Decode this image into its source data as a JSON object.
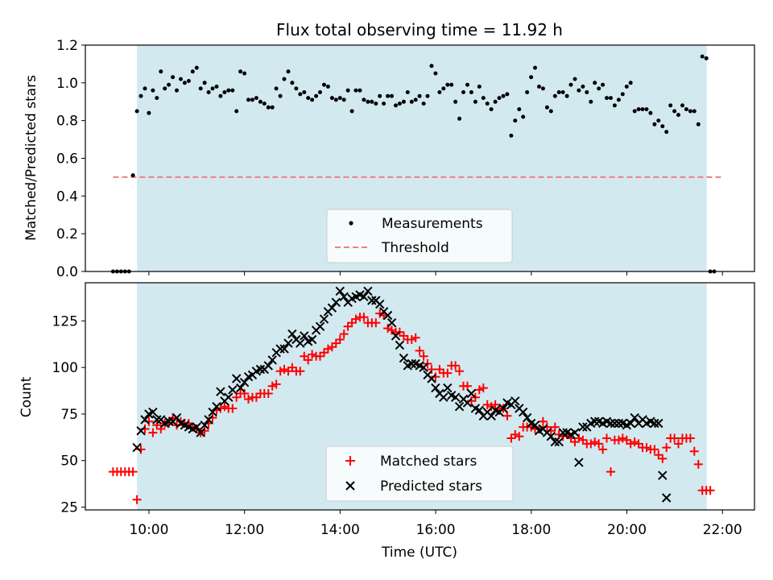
{
  "figure": {
    "title": "Flux total observing time = 11.92 h",
    "xlabel": "Time (UTC)",
    "x_ticks": [
      "10:00",
      "12:00",
      "14:00",
      "16:00",
      "18:00",
      "20:00",
      "22:00"
    ],
    "x_tick_hours": [
      10,
      12,
      14,
      16,
      18,
      20,
      22
    ],
    "xlim_hours": [
      8.67,
      22.67
    ],
    "observing_span_hours": [
      9.75,
      21.67
    ],
    "span_color": "#d3e9f0"
  },
  "chart_data": [
    {
      "type": "scatter",
      "ylabel": "Matched/Predicted stars",
      "ylim": [
        0,
        1.2
      ],
      "y_ticks": [
        "0.0",
        "0.2",
        "0.4",
        "0.6",
        "0.8",
        "1.0",
        "1.2"
      ],
      "y_tick_values": [
        0,
        0.2,
        0.4,
        0.6,
        0.8,
        1.0,
        1.2
      ],
      "legend_position": "bottom-center",
      "threshold": {
        "name": "Threshold",
        "value": 0.5,
        "x_range_hours": [
          9.25,
          22.0
        ],
        "color": "#f08080"
      },
      "series": [
        {
          "name": "Measurements",
          "marker": "dot",
          "color": "#000000",
          "x_start_hours": 9.25,
          "x_step_hours": 0.0833,
          "y": [
            0,
            0,
            0,
            0,
            0,
            0.51,
            0.85,
            0.93,
            0.97,
            0.84,
            0.96,
            0.92,
            1.06,
            0.97,
            0.99,
            1.03,
            0.96,
            1.02,
            1.0,
            1.01,
            1.06,
            1.08,
            0.97,
            1.0,
            0.95,
            0.97,
            0.98,
            0.93,
            0.95,
            0.96,
            0.96,
            0.85,
            1.06,
            1.05,
            0.91,
            0.91,
            0.92,
            0.9,
            0.89,
            0.87,
            0.87,
            0.97,
            0.93,
            1.02,
            1.06,
            1.0,
            0.97,
            0.94,
            0.95,
            0.92,
            0.91,
            0.93,
            0.95,
            0.99,
            0.98,
            0.92,
            0.91,
            0.92,
            0.91,
            0.96,
            0.85,
            0.96,
            0.96,
            0.91,
            0.9,
            0.9,
            0.89,
            0.93,
            0.89,
            0.93,
            0.93,
            0.88,
            0.89,
            0.9,
            0.95,
            0.9,
            0.91,
            0.93,
            0.89,
            0.93,
            1.09,
            1.05,
            0.95,
            0.97,
            0.99,
            0.99,
            0.9,
            0.81,
            0.95,
            0.99,
            0.95,
            0.9,
            0.98,
            0.92,
            0.89,
            0.86,
            0.9,
            0.92,
            0.93,
            0.94,
            0.72,
            0.8,
            0.86,
            0.82,
            0.95,
            1.03,
            1.08,
            0.98,
            0.97,
            0.87,
            0.85,
            0.93,
            0.95,
            0.95,
            0.93,
            0.99,
            1.02,
            0.96,
            0.98,
            0.95,
            0.9,
            1.0,
            0.97,
            0.99,
            0.92,
            0.92,
            0.88,
            0.91,
            0.94,
            0.98,
            1.0,
            0.85,
            0.86,
            0.86,
            0.86,
            0.84,
            0.78,
            0.8,
            0.77,
            0.74,
            0.88,
            0.85,
            0.83,
            0.88,
            0.86,
            0.85,
            0.85,
            0.78,
            1.14,
            1.13,
            0,
            0
          ]
        }
      ]
    },
    {
      "type": "scatter",
      "ylabel": "Count",
      "ylim": [
        23.5,
        145.5
      ],
      "y_ticks": [
        "25",
        "50",
        "75",
        "100",
        "125"
      ],
      "y_tick_values": [
        25,
        50,
        75,
        100,
        125
      ],
      "legend_position": "bottom-center",
      "series": [
        {
          "name": "Matched stars",
          "marker": "plus",
          "color": "#ff0000",
          "x_start_hours": 9.25,
          "x_step_hours": 0.0833,
          "y": [
            44,
            44,
            44,
            44,
            44,
            44,
            29,
            56,
            67,
            71,
            65,
            69,
            67,
            70,
            70,
            73,
            69,
            71,
            70,
            70,
            68,
            67,
            65,
            66,
            70,
            73,
            77,
            78,
            79,
            78,
            78,
            84,
            86,
            86,
            83,
            84,
            84,
            86,
            86,
            86,
            90,
            91,
            98,
            99,
            98,
            100,
            98,
            98,
            106,
            104,
            107,
            106,
            106,
            108,
            110,
            111,
            113,
            115,
            118,
            122,
            124,
            126,
            127,
            127,
            124,
            124,
            124,
            129,
            128,
            121,
            120,
            119,
            119,
            117,
            115,
            115,
            116,
            109,
            106,
            102,
            99,
            95,
            99,
            97,
            97,
            101,
            101,
            98,
            90,
            90,
            82,
            84,
            88,
            89,
            80,
            79,
            80,
            77,
            78,
            74,
            62,
            64,
            63,
            68,
            68,
            68,
            67,
            67,
            71,
            68,
            66,
            68,
            64,
            63,
            64,
            62,
            60,
            62,
            61,
            59,
            59,
            60,
            59,
            56,
            62,
            44,
            61,
            61,
            62,
            61,
            59,
            60,
            59,
            57,
            57,
            56,
            56,
            53,
            51,
            57,
            62,
            62,
            59,
            62,
            62,
            62,
            55,
            48,
            34,
            34,
            34
          ]
        },
        {
          "name": "Predicted stars",
          "marker": "cross",
          "color": "#000000",
          "x_start_hours": 9.75,
          "x_step_hours": 0.0833,
          "y": [
            57,
            66,
            72,
            75,
            76,
            72,
            72,
            70,
            71,
            71,
            73,
            70,
            69,
            68,
            67,
            68,
            65,
            69,
            72,
            76,
            79,
            87,
            82,
            84,
            88,
            94,
            89,
            92,
            95,
            96,
            98,
            99,
            99,
            101,
            104,
            108,
            110,
            110,
            113,
            118,
            115,
            113,
            117,
            114,
            115,
            120,
            122,
            126,
            130,
            132,
            135,
            141,
            138,
            135,
            137,
            138,
            139,
            138,
            141,
            136,
            136,
            134,
            130,
            128,
            124,
            117,
            112,
            105,
            101,
            102,
            102,
            101,
            100,
            96,
            94,
            89,
            86,
            84,
            89,
            85,
            84,
            79,
            83,
            81,
            86,
            78,
            77,
            74,
            76,
            74,
            77,
            76,
            78,
            81,
            80,
            82,
            78,
            76,
            73,
            70,
            69,
            66,
            67,
            65,
            63,
            60,
            60,
            65,
            65,
            64,
            65,
            49,
            68,
            68,
            70,
            71,
            71,
            70,
            71,
            70,
            70,
            70,
            70,
            69,
            70,
            73,
            70,
            72,
            70,
            71,
            70,
            70,
            42,
            30
          ]
        }
      ]
    }
  ]
}
